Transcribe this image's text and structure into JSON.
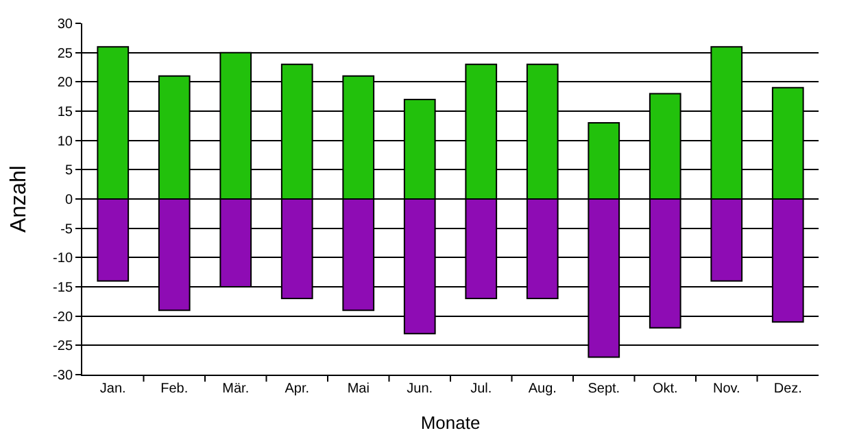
{
  "chart_data": {
    "type": "bar",
    "xlabel": "Monate",
    "ylabel": "Anzahl",
    "categories": [
      "Jan.",
      "Feb.",
      "Mär.",
      "Apr.",
      "Mai",
      "Jun.",
      "Jul.",
      "Aug.",
      "Sept.",
      "Okt.",
      "Nov.",
      "Dez."
    ],
    "series": [
      {
        "color": "#22c10c",
        "values": [
          26,
          21,
          25,
          23,
          21,
          17,
          23,
          23,
          13,
          18,
          26,
          19
        ]
      },
      {
        "color": "#8e0cb4",
        "values": [
          -14,
          -19,
          -15,
          -17,
          -19,
          -23,
          -17,
          -17,
          -27,
          -22,
          -14,
          -21
        ]
      }
    ],
    "stacked": true,
    "ylim": [
      -30,
      30
    ],
    "yticks": [
      -30,
      -25,
      -20,
      -15,
      -10,
      -5,
      0,
      5,
      10,
      15,
      20,
      25,
      30
    ],
    "grid": "y"
  }
}
